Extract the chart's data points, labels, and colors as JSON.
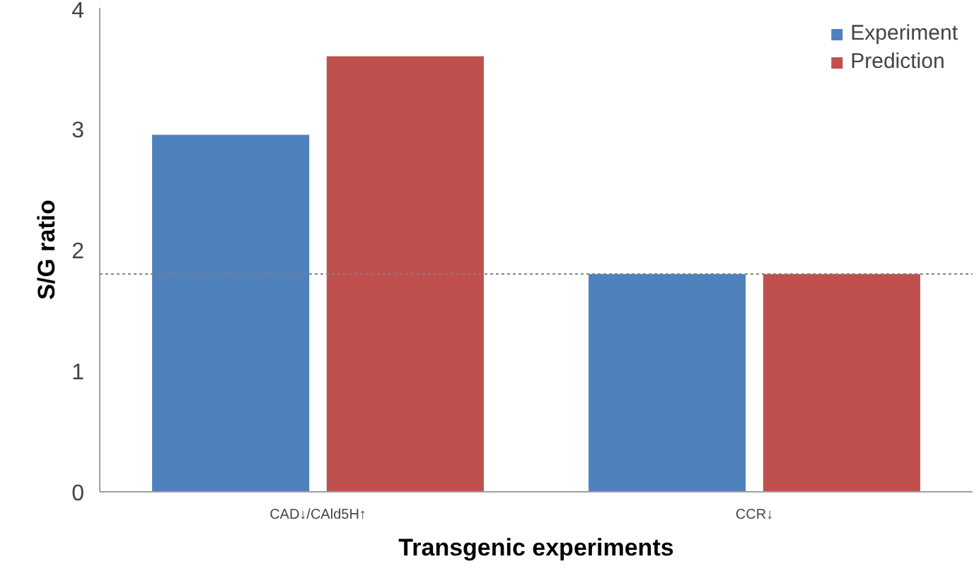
{
  "chart_data": {
    "type": "bar",
    "xlabel": "Transgenic experiments",
    "ylabel": "S/G ratio",
    "categories": [
      "CAD↓/CAld5H↑",
      "CCR↓"
    ],
    "series": [
      {
        "name": "Experiment",
        "color": "#4f81bd",
        "values": [
          2.95,
          1.8
        ]
      },
      {
        "name": "Prediction",
        "color": "#c0504d",
        "values": [
          3.6,
          1.8
        ]
      }
    ],
    "ylim": [
      0,
      4
    ],
    "yticks": [
      0,
      1,
      2,
      3,
      4
    ],
    "grid": false,
    "legend": "top right",
    "ref_lines": [
      {
        "axis": "y",
        "value": 1.8,
        "label": null,
        "color": "#808080",
        "line_style": "dotted"
      }
    ]
  }
}
